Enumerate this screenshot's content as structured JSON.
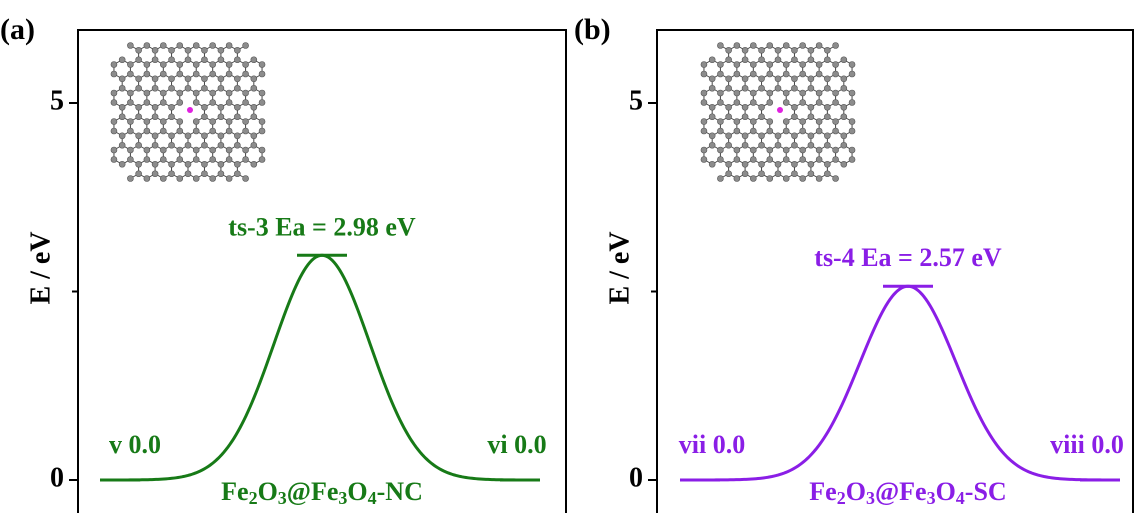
{
  "chart_data": [
    {
      "type": "line",
      "panel_label": "(a)",
      "ylabel": "E / eV",
      "color": "#177a17",
      "values": [
        0.0,
        2.98,
        0.0
      ],
      "value_labels": [
        "v 0.0",
        "ts-3 Ea = 2.98 eV",
        "vi 0.0"
      ],
      "system_label": [
        "Fe",
        "2",
        "O",
        "3",
        "@Fe",
        "3",
        "O",
        "4",
        "-NC"
      ],
      "ylim": [
        -0.44,
        5.97
      ],
      "yticks": [
        0,
        5
      ],
      "minor_yticks": [
        2.5
      ]
    },
    {
      "type": "line",
      "panel_label": "(b)",
      "ylabel": "E / eV",
      "color": "#8a1ee6",
      "values": [
        0.0,
        2.57,
        0.0
      ],
      "value_labels": [
        "vii 0.0",
        "ts-4 Ea = 2.57 eV",
        "viii 0.0"
      ],
      "system_label": [
        "Fe",
        "2",
        "O",
        "3",
        "@Fe",
        "3",
        "O",
        "4",
        "-SC"
      ],
      "ylim": [
        -0.44,
        5.97
      ],
      "yticks": [
        0,
        5
      ],
      "minor_yticks": [
        2.5
      ]
    }
  ]
}
